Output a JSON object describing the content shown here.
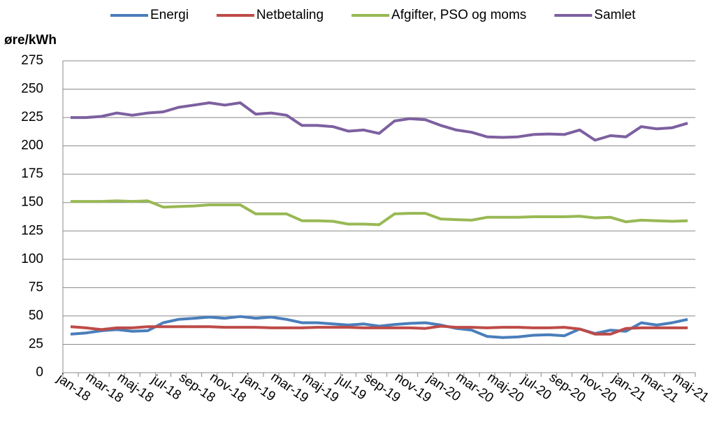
{
  "chart_data": {
    "type": "line",
    "y_axis_label": "øre/kWh",
    "categories": [
      "jan-18",
      null,
      "mar-18",
      null,
      "maj-18",
      null,
      "jul-18",
      null,
      "sep-18",
      null,
      "nov-18",
      null,
      "jan-19",
      null,
      "mar-19",
      null,
      "maj-19",
      null,
      "jul-19",
      null,
      "sep-19",
      null,
      "nov-19",
      null,
      "jan-20",
      null,
      "mar-20",
      null,
      "maj-20",
      null,
      "jul-20",
      null,
      "sep-20",
      null,
      "nov-20",
      null,
      "jan-21",
      null,
      "mar-21",
      null,
      "maj-21"
    ],
    "series": [
      {
        "name": "Energi",
        "color": "#4a7ebb",
        "values": [
          34,
          35,
          37,
          38,
          36.5,
          37,
          44,
          47,
          48,
          49,
          48,
          49.5,
          48,
          49,
          47,
          44,
          44,
          43,
          42,
          43,
          41,
          42.5,
          43.5,
          44,
          42,
          39,
          37.5,
          32,
          31,
          31.5,
          33,
          33.5,
          32.5,
          38.5,
          34.5,
          37.5,
          36.5,
          44,
          42,
          44,
          47
        ]
      },
      {
        "name": "Netbetaling",
        "color": "#be4b48",
        "values": [
          40.5,
          39.5,
          38,
          39.5,
          39.5,
          40.5,
          40.5,
          40.5,
          40.5,
          40.5,
          40,
          40,
          40,
          39.5,
          39.5,
          39.5,
          40,
          40,
          40,
          39.5,
          39.5,
          39.5,
          39.5,
          39,
          41,
          40,
          40,
          39.5,
          40,
          40,
          39.5,
          39.5,
          40,
          38.5,
          34,
          34,
          39,
          39.5,
          39.5,
          39.5,
          39.5
        ]
      },
      {
        "name": "Afgifter, PSO og moms",
        "color": "#98b954",
        "values": [
          151,
          151,
          151,
          151.5,
          151,
          151.5,
          146,
          146.5,
          147,
          148,
          148,
          148,
          140,
          140,
          140,
          134,
          134,
          133.5,
          131,
          131,
          130.5,
          140,
          140.5,
          140.5,
          135.5,
          135,
          134.5,
          137,
          137,
          137,
          137.5,
          137.5,
          137.5,
          138,
          136.5,
          137,
          133,
          134.5,
          134,
          133.5,
          134
        ]
      },
      {
        "name": "Samlet",
        "color": "#7d60a0",
        "values": [
          225,
          225,
          226,
          229,
          227,
          229,
          230,
          234,
          236,
          238,
          236,
          238,
          228,
          229,
          227,
          218,
          218,
          217,
          213,
          214,
          211,
          222,
          224,
          223,
          218,
          214,
          212,
          208,
          207.5,
          208,
          210,
          210.5,
          210,
          214,
          205,
          209,
          208,
          217,
          215,
          216,
          220
        ]
      }
    ],
    "ylim": [
      0,
      275
    ],
    "yticks": [
      0,
      25,
      50,
      75,
      100,
      125,
      150,
      175,
      200,
      225,
      250,
      275
    ],
    "grid": true
  }
}
